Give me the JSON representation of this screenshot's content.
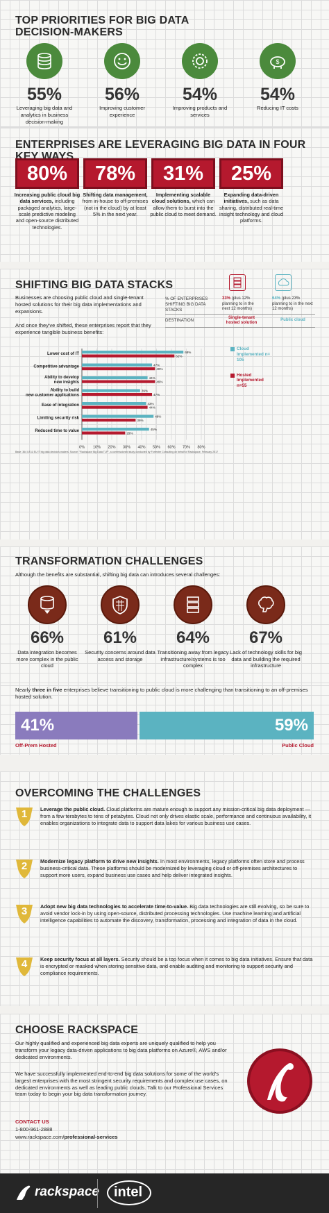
{
  "priorities": {
    "title": "TOP PRIORITIES FOR BIG DATA DECISION-MAKERS",
    "items": [
      {
        "pct": "55%",
        "text": "Leveraging big data and analytics in business decision-making",
        "icon": "database-icon"
      },
      {
        "pct": "56%",
        "text": "Improving customer experience",
        "icon": "smiley-icon"
      },
      {
        "pct": "54%",
        "text": "Improving products and services",
        "icon": "gears-icon"
      },
      {
        "pct": "54%",
        "text": "Reducing IT costs",
        "icon": "piggy-bank-icon"
      }
    ]
  },
  "ways": {
    "title": "ENTERPRISES ARE LEVERAGING BIG DATA IN FOUR KEY WAYS",
    "items": [
      {
        "pct": "80%",
        "bold": "Increasing public cloud big data services,",
        "rest": " including packaged analytics, large-scale predictive modeling and open-source distributed technologies."
      },
      {
        "pct": "78%",
        "bold": "Shifting data management,",
        "rest": " from in-house to off-premises (not in the cloud) by at least 5% in the next year."
      },
      {
        "pct": "31%",
        "bold": "Implementing scalable cloud solutions,",
        "rest": " which can allow them to burst into the public cloud to meet demand."
      },
      {
        "pct": "25%",
        "bold": "Expanding data-driven initiatives,",
        "rest": " such as data sharing, distributed real-time insight technology and cloud platforms."
      }
    ]
  },
  "stacks": {
    "title": "SHIFTING BIG DATA STACKS",
    "intro": "Businesses are choosing public cloud and single-tenant hosted solutions for their big data implementations and expansions.",
    "intro2": "And once they've shifted, these enterprises report that they experience tangible business benefits:",
    "table": {
      "row1_label": "% OF ENTERPRISES SHIFTING BIG DATA STACKS",
      "c1_bold": "33%",
      "c1_rest": " (plus 12% planning to in the next 12 months)",
      "c2_bold": "64%",
      "c2_rest": " (plus 23% planning to in the next 12 months)",
      "row2_label": "DESTINATION",
      "c1_dest": "Single-tenant hosted solution",
      "c2_dest": "Public cloud"
    },
    "source": "Base: 364 US & EU IT big data decision-makers. Source: \"Rackspace Big Data TLP\", a commissioned study conducted by Forrester Consulting on behalf of Rackspace, February 2017"
  },
  "chart_data": {
    "type": "bar",
    "categories": [
      "Lower cost of IT",
      "Competitive advantage",
      "Ability to develop new insights",
      "Ability to build new customer applications",
      "Ease of integration",
      "Limiting security risk",
      "Reduced time to value"
    ],
    "series": [
      {
        "name": "Cloud Implemented n= 105",
        "values": [
          68,
          47,
          44,
          39,
          43,
          48,
          45
        ],
        "color": "#5bb3c1"
      },
      {
        "name": "Hosted Implemented n=55",
        "values": [
          62,
          49,
          49,
          47,
          44,
          36,
          29
        ],
        "color": "#b5192e"
      }
    ],
    "xlim": [
      0,
      80
    ],
    "xticks": [
      "0%",
      "10%",
      "20%",
      "30%",
      "40%",
      "50%",
      "60%",
      "70%",
      "80%"
    ],
    "legend": "right"
  },
  "challenges": {
    "title": "TRANSFORMATION CHALLENGES",
    "intro": "Although the benefits are substantial, shifting big data can introduces several challenges:",
    "items": [
      {
        "pct": "66%",
        "text": "Data integration becomes more complex in the public cloud",
        "icon": "database-arrow-icon"
      },
      {
        "pct": "61%",
        "text": "Security concerns around data access and storage",
        "icon": "shield-grid-icon"
      },
      {
        "pct": "64%",
        "text": "Transitioning away from legacy infrastructure/systems is too complex",
        "icon": "server-icon"
      },
      {
        "pct": "67%",
        "text": "Lack of technology skills for big data and building the required infrastructure",
        "icon": "brain-icon"
      }
    ],
    "note_pre": "Nearly ",
    "note_bold": "three in five",
    "note_post": " enterprises believe transitioning to public cloud is more challenging than transitioning to an off-premises hosted solution.",
    "split": {
      "left_pct": "41%",
      "right_pct": "59%",
      "left_label": "Off-Prem Hosted",
      "right_label": "Public Cloud",
      "left_value": 41,
      "right_value": 59,
      "left_color": "#8a7bbd",
      "right_color": "#5bb3c1"
    }
  },
  "overcoming": {
    "title": "OVERCOMING THE CHALLENGES",
    "steps": [
      {
        "num": "1",
        "bold": "Leverage the public cloud.",
        "rest": " Cloud platforms are mature enough to support any mission-critical big data deployment — from a few terabytes to tens of petabytes. Cloud not only drives elastic scale, performance and continuous availability, it enables organizations to integrate data to support data lakes for various business use cases."
      },
      {
        "num": "2",
        "bold": "Modernize legacy platform to drive new insights.",
        "rest": " In most environments, legacy platforms often store and process business-critical data. These platforms should be modernized by leveraging cloud or off-premises architectures to support more users, expand business use cases and help deliver integrated insights."
      },
      {
        "num": "3",
        "bold": "Adopt new big data technologies to accelerate time-to-value.",
        "rest": " Big data technologies are still evolving, so be sure to avoid vendor lock-in by using open-source, distributed processing technologies. Use machine learning and artificial intelligence capabilities to automate the discovery, transformation, processing and integration of data in the cloud."
      },
      {
        "num": "4",
        "bold": "Keep security focus at all layers.",
        "rest": " Security should be a top focus when it comes to big data initiatives. Ensure that data is encrypted or masked when storing sensitive data, and enable auditing and monitoring to support security and compliance requirements."
      }
    ]
  },
  "rackspace": {
    "title": "CHOOSE RACKSPACE",
    "p1": "Our highly qualified and experienced big data experts are uniquely qualified to help you transform your legacy data-driven applications to big data platforms on Azure®, AWS and/or dedicated environments.",
    "p2": "We have successfully implemented end-to-end big data solutions for some of the world's largest enterprises with the most stringent security requirements and complex use cases, on dedicated environments as well as leading public clouds. Talk to our Professional Services team today to begin your big data transformation journey.",
    "contact_label": "CONTACT US",
    "phone": "1-800-961-2888",
    "url_pre": "www.rackspace.com/",
    "url_bold": "professional-services"
  },
  "footer": {
    "logo1": "rackspace",
    "logo2": "intel"
  }
}
